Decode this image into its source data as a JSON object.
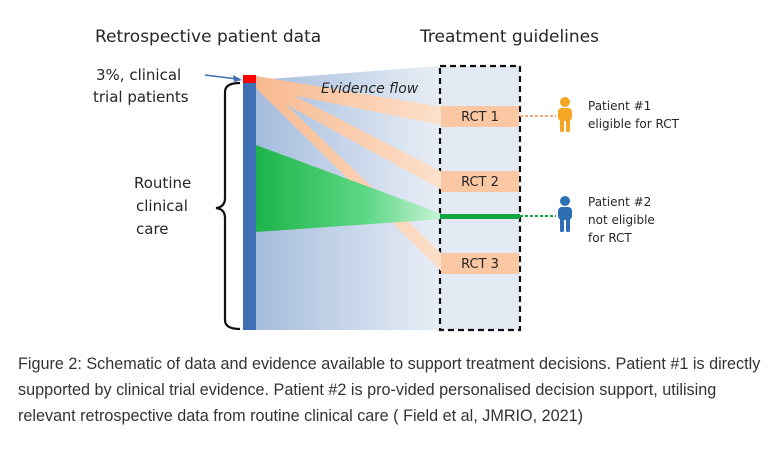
{
  "diagram": {
    "header_left": "Retrospective patient data",
    "header_right": "Treatment guidelines",
    "clinical_trial_label": [
      "3%, clinical",
      "trial patients"
    ],
    "routine_care_label": [
      "Routine",
      "clinical",
      "care"
    ],
    "evidence_flow_label": "Evidence flow",
    "rct_labels": [
      "RCT 1",
      "RCT 2",
      "RCT 3"
    ],
    "patient1_label": [
      "Patient #1",
      "eligible for RCT"
    ],
    "patient2_label": [
      "Patient #2",
      "not eligible",
      "for RCT"
    ],
    "colors": {
      "data_bar": "#3f6fb5",
      "trial_marker": "#ff0000",
      "rct_box": "#fbc8a3",
      "patient1": "#f5a623",
      "patient2": "#2e6fb3",
      "routine_green": "#1fbf4f",
      "guideline_bg": "#e4eaf3"
    },
    "icons": [
      "person-icon-orange",
      "person-icon-blue"
    ]
  },
  "caption": "Figure 2: Schematic of data and evidence available to support treatment decisions. Patient #1 is directly supported by clinical trial evidence. Patient #2 is pro-vided personalised decision support, utilising relevant retrospective data from routine clinical care ( Field et al, JMRIO, 2021)"
}
